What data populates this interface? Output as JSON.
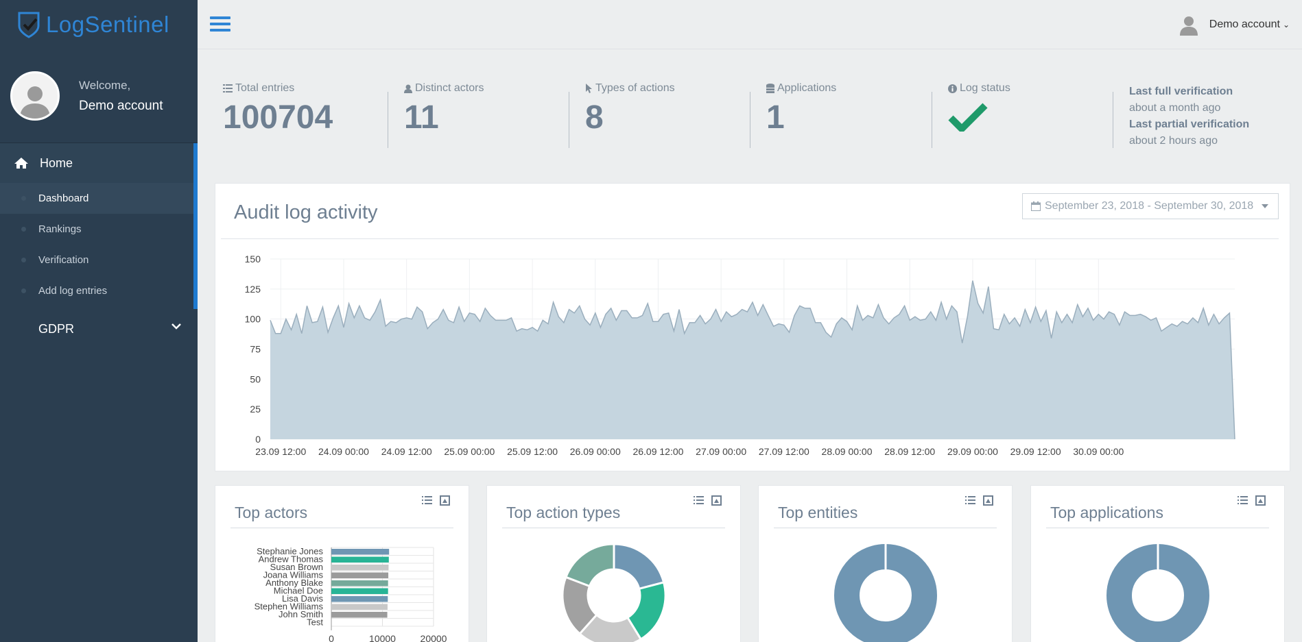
{
  "brand": {
    "name": "LogSentinel"
  },
  "user": {
    "welcome": "Welcome,",
    "name": "Demo account"
  },
  "sidebar": {
    "home_label": "Home",
    "items": [
      {
        "label": "Dashboard",
        "active": true
      },
      {
        "label": "Rankings"
      },
      {
        "label": "Verification"
      },
      {
        "label": "Add log entries"
      }
    ],
    "gdpr_label": "GDPR"
  },
  "topbar": {
    "account_label": "Demo account"
  },
  "stats": {
    "total_entries": {
      "label": "Total entries",
      "value": "100704",
      "icon": "list-icon"
    },
    "distinct_actors": {
      "label": "Distinct actors",
      "value": "11",
      "icon": "user-icon"
    },
    "types_of_actions": {
      "label": "Types of actions",
      "value": "8",
      "icon": "pointer-icon"
    },
    "applications": {
      "label": "Applications",
      "value": "1",
      "icon": "database-icon"
    },
    "log_status": {
      "label": "Log status",
      "icon": "info-icon",
      "status": "ok"
    },
    "verification": {
      "full_label": "Last full verification",
      "full_value": "about a month ago",
      "partial_label": "Last partial verification",
      "partial_value": "about 2 hours ago"
    }
  },
  "audit": {
    "title": "Audit log activity",
    "date_range": "September 23, 2018 - September 30, 2018"
  },
  "chart_data": [
    {
      "type": "area",
      "title": "Audit log activity",
      "ylim": [
        0,
        150
      ],
      "yticks": [
        0,
        25,
        50,
        75,
        100,
        125,
        150
      ],
      "xticks": [
        "23.09 12:00",
        "24.09 00:00",
        "24.09 12:00",
        "25.09 00:00",
        "25.09 12:00",
        "26.09 00:00",
        "26.09 12:00",
        "27.09 00:00",
        "27.09 12:00",
        "28.09 00:00",
        "28.09 12:00",
        "29.09 00:00",
        "29.09 12:00",
        "30.09 00:00"
      ],
      "color": "#c5d5df",
      "line_color": "#9aaebd",
      "grid": true,
      "values": [
        99,
        88,
        88,
        100,
        91,
        104,
        88,
        111,
        97,
        98,
        110,
        89,
        101,
        111,
        93,
        113,
        101,
        111,
        101,
        99,
        106,
        116,
        94,
        98,
        97,
        100,
        101,
        100,
        110,
        106,
        92,
        97,
        100,
        108,
        99,
        97,
        110,
        98,
        105,
        104,
        98,
        109,
        103,
        99,
        99,
        99,
        101,
        90,
        92,
        91,
        93,
        90,
        99,
        96,
        114,
        102,
        97,
        108,
        105,
        111,
        100,
        95,
        105,
        93,
        104,
        109,
        99,
        107,
        107,
        101,
        101,
        103,
        113,
        98,
        98,
        104,
        105,
        90,
        108,
        88,
        97,
        97,
        103,
        96,
        100,
        108,
        98,
        106,
        102,
        104,
        108,
        106,
        114,
        103,
        112,
        103,
        94,
        96,
        95,
        89,
        103,
        111,
        109,
        109,
        97,
        97,
        89,
        85,
        96,
        101,
        98,
        91,
        111,
        99,
        103,
        101,
        112,
        101,
        96,
        101,
        104,
        111,
        99,
        102,
        99,
        100,
        106,
        99,
        114,
        100,
        111,
        106,
        80,
        102,
        132,
        113,
        105,
        127,
        92,
        91,
        104,
        96,
        101,
        94,
        108,
        97,
        110,
        98,
        107,
        84,
        106,
        97,
        104,
        97,
        112,
        102,
        109,
        99,
        104,
        100,
        106,
        104,
        95,
        106,
        103,
        103,
        104,
        102,
        99,
        101,
        90,
        93,
        96,
        94,
        98,
        96,
        101,
        97,
        109,
        95,
        104,
        96,
        101,
        105,
        0
      ],
      "x_first_index": 0,
      "x_tick_start_index": 2,
      "x_tick_step": 12
    },
    {
      "type": "bar",
      "orientation": "horizontal",
      "title": "Top actors",
      "categories": [
        "Stephanie Jones",
        "Andrew Thomas",
        "Susan Brown",
        "Joana Williams",
        "Anthony Blake",
        "Michael Doe",
        "Lisa Davis",
        "Stephen Williams",
        "John Smith",
        "Test"
      ],
      "values": [
        11300,
        11250,
        11200,
        11150,
        11100,
        11100,
        11050,
        11000,
        10950,
        0
      ],
      "colors": [
        "#6f96b3",
        "#28b496",
        "#c8c8c8",
        "#9b9b9b",
        "#75a99a",
        "#28b496",
        "#6f96b3",
        "#c8c8c8",
        "#9b9b9b",
        "#6f96b3"
      ],
      "xlim": [
        0,
        20000
      ],
      "xticks": [
        0,
        10000,
        20000
      ]
    },
    {
      "type": "pie",
      "title": "Top action types",
      "slices": [
        {
          "value": 18.5,
          "color": "#6f96b3"
        },
        {
          "value": 18,
          "color": "#2ab893"
        },
        {
          "value": 18,
          "color": "#c9c9c9"
        },
        {
          "value": 17,
          "color": "#a1a1a1"
        },
        {
          "value": 17,
          "color": "#76aa9b"
        }
      ]
    },
    {
      "type": "pie",
      "title": "Top entities",
      "slices": [
        {
          "value": 100,
          "color": "#6f96b3"
        }
      ]
    },
    {
      "type": "pie",
      "title": "Top applications",
      "slices": [
        {
          "value": 100,
          "color": "#6f96b3"
        }
      ]
    }
  ],
  "panels": {
    "top_actors": "Top actors",
    "top_action_types": "Top action types",
    "top_entities": "Top entities",
    "top_applications": "Top applications"
  }
}
